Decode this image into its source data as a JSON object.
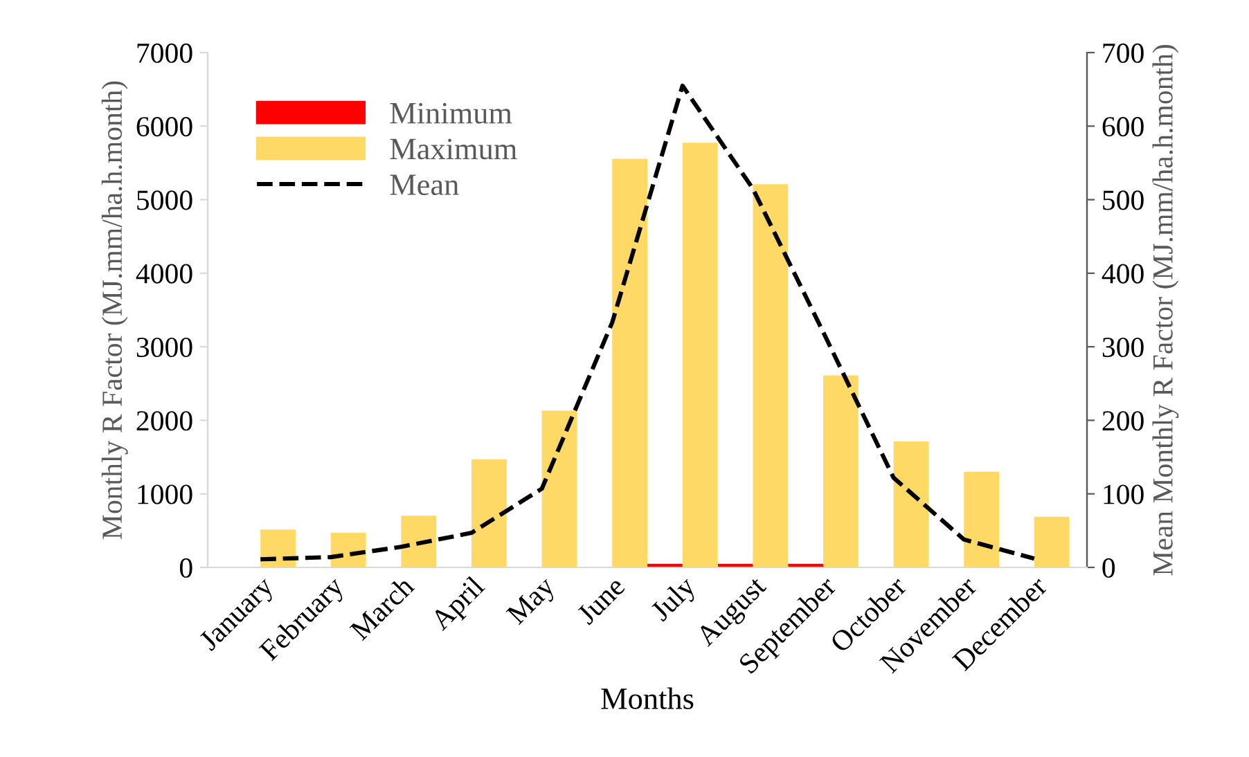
{
  "chart_data": {
    "type": "bar",
    "xlabel": "Months",
    "ylabel": "Monthly R Factor (MJ.mm/ha.h.month)",
    "y2label": "Mean Monthly R Factor (MJ.mm/ha.h.month)",
    "categories": [
      "January",
      "February",
      "March",
      "April",
      "May",
      "June",
      "July",
      "August",
      "September",
      "October",
      "November",
      "December"
    ],
    "series": [
      {
        "name": "Minimum",
        "color": "#ff0000",
        "values": [
          0,
          0,
          0,
          0,
          0,
          0,
          50,
          50,
          50,
          0,
          0,
          0
        ]
      },
      {
        "name": "Maximum",
        "color": "#ffd966",
        "values": [
          515,
          470,
          703,
          1470,
          2130,
          5555,
          5775,
          5210,
          2610,
          1713,
          1300,
          690
        ]
      },
      {
        "name": "Mean",
        "type": "line",
        "axis": "y2",
        "color": "#000000",
        "line_style": "dashed",
        "values": [
          11,
          14,
          28,
          47,
          107,
          333,
          655,
          515,
          320,
          122,
          38,
          12
        ]
      }
    ],
    "ylim": [
      0,
      7000
    ],
    "yticks": [
      0,
      1000,
      2000,
      3000,
      4000,
      5000,
      6000,
      7000
    ],
    "y2lim": [
      0,
      700
    ],
    "y2ticks": [
      0,
      100,
      200,
      300,
      400,
      500,
      600,
      700
    ],
    "grid": false,
    "legend": "top left"
  }
}
